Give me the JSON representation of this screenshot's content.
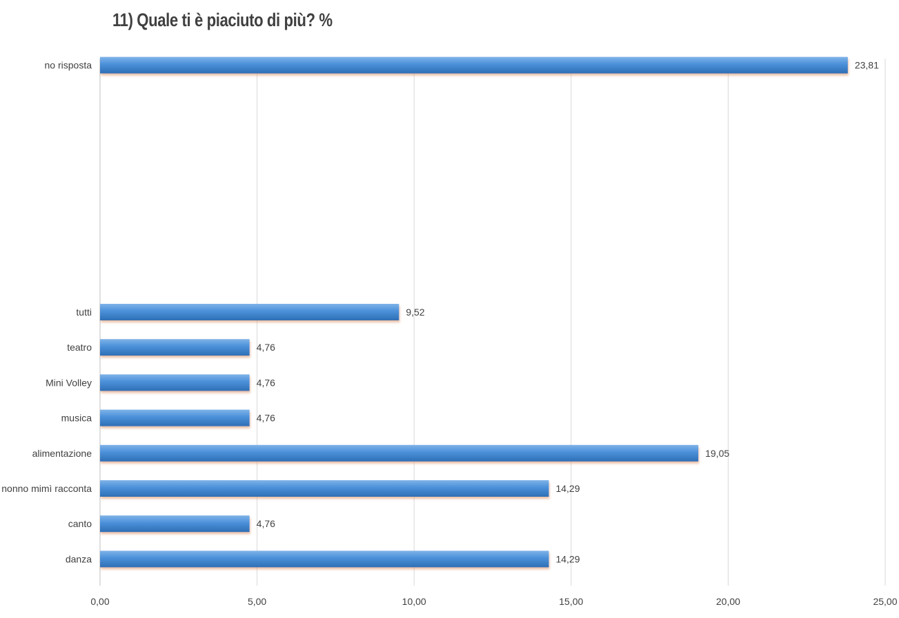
{
  "chart_data": {
    "type": "bar",
    "orientation": "horizontal",
    "title": "11) Quale ti è piaciuto di più? %",
    "categories": [
      "no risposta",
      "",
      "",
      "",
      "",
      "",
      "",
      "tutti",
      "teatro",
      "Mini Volley",
      "musica",
      "alimentazione",
      "nonno mimì racconta",
      "canto",
      "danza"
    ],
    "values": [
      23.81,
      null,
      null,
      null,
      null,
      null,
      null,
      9.52,
      4.76,
      4.76,
      4.76,
      19.05,
      14.29,
      4.76,
      14.29
    ],
    "data_labels": [
      "23,81",
      "",
      "",
      "",
      "",
      "",
      "",
      "9,52",
      "4,76",
      "4,76",
      "4,76",
      "19,05",
      "14,29",
      "4,76",
      "14,29"
    ],
    "x_ticks": [
      "0,00",
      "5,00",
      "10,00",
      "15,00",
      "20,00",
      "25,00"
    ],
    "xlim": [
      0,
      25
    ],
    "grid": true,
    "bar_color": "#4a90d9"
  }
}
